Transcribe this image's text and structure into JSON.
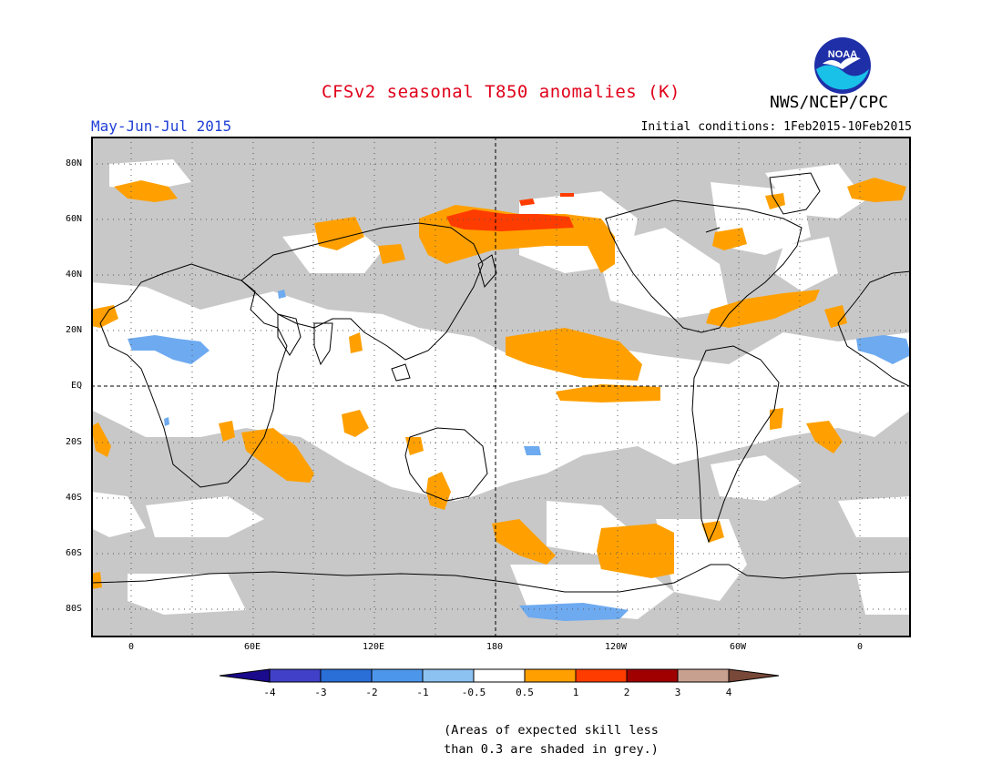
{
  "header": {
    "title": "CFSv2 seasonal T850 anomalies (K)",
    "period": "May-Jun-Jul 2015",
    "initial_conditions": "Initial conditions: 1Feb2015-10Feb2015",
    "agency": "NWS/NCEP/CPC",
    "logo_text": "NOAA"
  },
  "axes": {
    "lat_labels": [
      "80N",
      "60N",
      "40N",
      "20N",
      "EQ",
      "20S",
      "40S",
      "60S",
      "80S"
    ],
    "lon_labels": [
      "0",
      "60E",
      "120E",
      "180",
      "120W",
      "60W",
      "0"
    ]
  },
  "legend": {
    "labels": [
      "-4",
      "-3",
      "-2",
      "-1",
      "-0.5",
      "0.5",
      "1",
      "2",
      "3",
      "4"
    ],
    "colors": [
      "#1a0a8c",
      "#4040c8",
      "#2a6ed8",
      "#4c96ec",
      "#8cc2f2",
      "#ffffff",
      "#ffa000",
      "#ff3c00",
      "#a00000",
      "#c8a090",
      "#784838"
    ]
  },
  "map_colors": {
    "low_skill_grey": "#c8c8c8",
    "ocean_white": "#ffffff",
    "warm_anomaly": "#ffa000",
    "strong_warm_anomaly": "#ff3c00",
    "cool_anomaly": "#6eaaf0",
    "coastline": "#000000"
  },
  "footnote": {
    "line1": "(Areas of expected skill less",
    "line2": "than 0.3 are shaded in grey.)"
  }
}
